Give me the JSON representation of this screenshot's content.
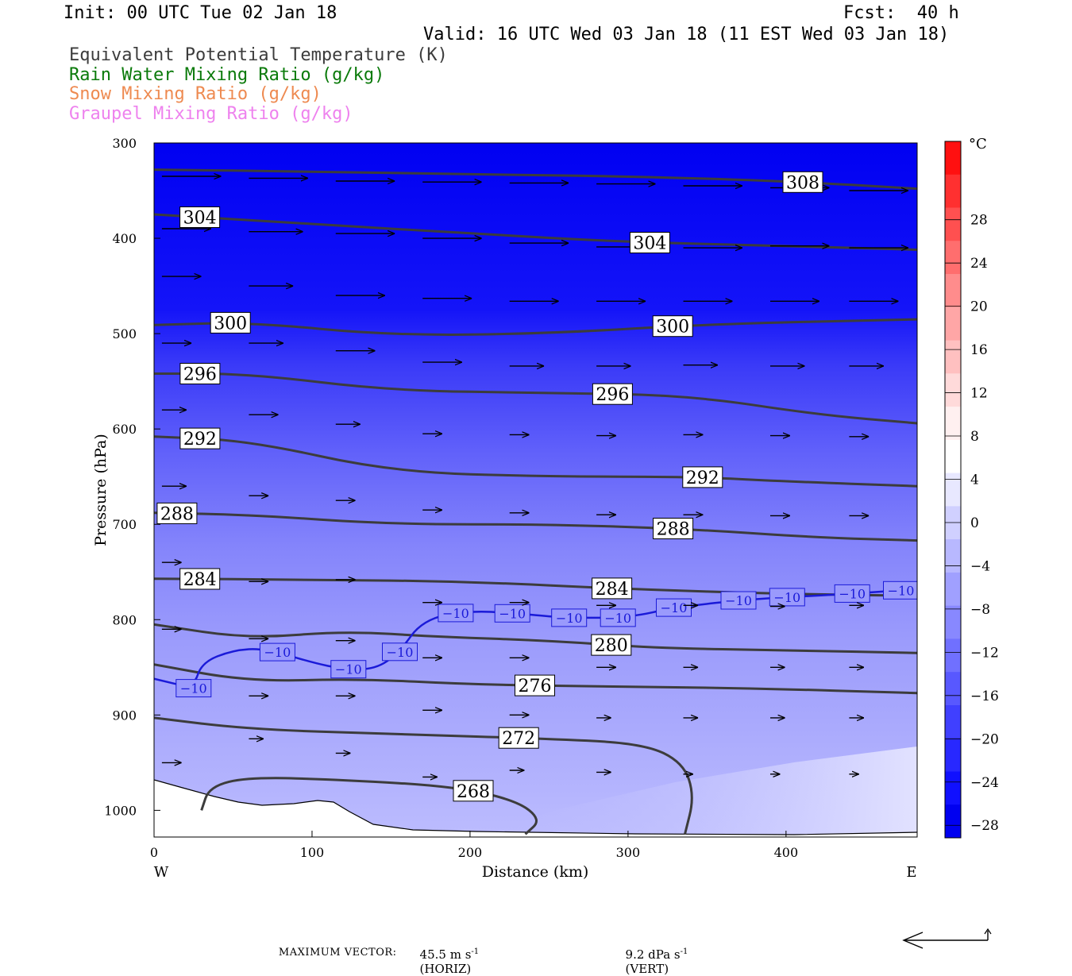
{
  "header": {
    "init": "Init: 00 UTC Tue 02 Jan 18",
    "fcst": "Fcst:  40 h",
    "valid": "Valid: 16 UTC Wed 03 Jan 18 (11 EST Wed 03 Jan 18)"
  },
  "legend": [
    {
      "label": "Equivalent Potential Temperature (K)",
      "color": "#3c3c3c"
    },
    {
      "label": "Rain Water Mixing Ratio (g/kg)",
      "color": "#0a7a0a"
    },
    {
      "label": "Snow Mixing Ratio (g/kg)",
      "color": "#ee8a50"
    },
    {
      "label": "Graupel Mixing Ratio (g/kg)",
      "color": "#ee82ee"
    }
  ],
  "footer": {
    "max_vector_label": "MAXIMUM VECTOR:",
    "horiz_value": "45.5 m s",
    "horiz_exp": "-1",
    "horiz_unit": "(HORIZ)",
    "vert_value": "9.2 dPa s",
    "vert_exp": "-1",
    "vert_unit": "(VERT)"
  },
  "chart_data": {
    "type": "cross-section",
    "xlabel": "Distance (km)",
    "ylabel": "Pressure (hPa)",
    "xlim": [
      0,
      483
    ],
    "ylim": [
      300,
      1028
    ],
    "y_scale": "linear-inverted",
    "x_ticks": [
      0,
      100,
      200,
      300,
      400
    ],
    "y_ticks": [
      300,
      400,
      500,
      600,
      700,
      800,
      900,
      1000
    ],
    "x_end_labels": {
      "left": "W",
      "right": "E"
    },
    "colorbar": {
      "unit": "°C",
      "tick_labels": [
        28,
        24,
        20,
        16,
        12,
        8,
        4,
        0,
        -4,
        -8,
        -12,
        -16,
        -20,
        -24,
        -28
      ],
      "colors": [
        "#ff1010",
        "#ff3030",
        "#ff5050",
        "#ff6e6e",
        "#ff8c8c",
        "#ffa6a6",
        "#ffc0c0",
        "#ffdada",
        "#fff0f0",
        "#ffffff",
        "#e8e8ff",
        "#d0d0ff",
        "#b8b8ff",
        "#a0a0ff",
        "#8888ff",
        "#7070ff",
        "#5858ff",
        "#4040ff",
        "#2828ff",
        "#1010ff",
        "#0000f0"
      ]
    },
    "theta_e_contours": [
      {
        "value": 308,
        "label": "308",
        "points": [
          [
            0,
            328
          ],
          [
            100,
            330
          ],
          [
            200,
            333
          ],
          [
            300,
            335
          ],
          [
            400,
            340
          ],
          [
            483,
            348
          ]
        ]
      },
      {
        "value": 304,
        "label": "304",
        "points": [
          [
            0,
            375
          ],
          [
            100,
            385
          ],
          [
            200,
            395
          ],
          [
            300,
            404
          ],
          [
            400,
            408
          ],
          [
            483,
            412
          ]
        ]
      },
      {
        "value": 300,
        "label": "300",
        "points": [
          [
            0,
            491
          ],
          [
            60,
            488
          ],
          [
            150,
            502
          ],
          [
            250,
            500
          ],
          [
            350,
            490
          ],
          [
            483,
            485
          ]
        ]
      },
      {
        "value": 296,
        "label": "296",
        "points": [
          [
            0,
            542
          ],
          [
            60,
            542
          ],
          [
            150,
            560
          ],
          [
            250,
            562
          ],
          [
            340,
            565
          ],
          [
            420,
            585
          ],
          [
            483,
            594
          ]
        ]
      },
      {
        "value": 292,
        "label": "292",
        "points": [
          [
            0,
            608
          ],
          [
            60,
            612
          ],
          [
            150,
            645
          ],
          [
            250,
            650
          ],
          [
            340,
            650
          ],
          [
            400,
            655
          ],
          [
            483,
            660
          ]
        ]
      },
      {
        "value": 288,
        "label": "288",
        "points": [
          [
            0,
            688
          ],
          [
            60,
            690
          ],
          [
            150,
            700
          ],
          [
            250,
            700
          ],
          [
            340,
            705
          ],
          [
            420,
            714
          ],
          [
            483,
            717
          ]
        ]
      },
      {
        "value": 284,
        "label": "284",
        "points": [
          [
            0,
            757
          ],
          [
            100,
            758
          ],
          [
            200,
            760
          ],
          [
            300,
            768
          ],
          [
            400,
            773
          ],
          [
            483,
            775
          ]
        ]
      },
      {
        "value": 280,
        "label": "280",
        "points": [
          [
            0,
            805
          ],
          [
            60,
            820
          ],
          [
            120,
            812
          ],
          [
            180,
            818
          ],
          [
            250,
            822
          ],
          [
            320,
            830
          ],
          [
            400,
            832
          ],
          [
            483,
            835
          ]
        ]
      },
      {
        "value": 276,
        "label": "276",
        "points": [
          [
            0,
            847
          ],
          [
            60,
            865
          ],
          [
            130,
            862
          ],
          [
            200,
            868
          ],
          [
            280,
            870
          ],
          [
            380,
            872
          ],
          [
            483,
            877
          ]
        ]
      },
      {
        "value": 272,
        "label": "272",
        "points": [
          [
            0,
            903
          ],
          [
            60,
            915
          ],
          [
            150,
            920
          ],
          [
            250,
            925
          ],
          [
            310,
            930
          ],
          [
            335,
            950
          ],
          [
            342,
            985
          ],
          [
            336,
            1025
          ]
        ]
      },
      {
        "value": 268,
        "label": "268",
        "points": [
          [
            30,
            1000
          ],
          [
            35,
            975
          ],
          [
            60,
            965
          ],
          [
            120,
            968
          ],
          [
            190,
            975
          ],
          [
            230,
            990
          ],
          [
            245,
            1010
          ],
          [
            235,
            1025
          ]
        ]
      }
    ],
    "temp_contour": {
      "value": -10,
      "label": "−10",
      "points": [
        [
          0,
          862
        ],
        [
          25,
          872
        ],
        [
          30,
          845
        ],
        [
          50,
          832
        ],
        [
          70,
          830
        ],
        [
          100,
          845
        ],
        [
          120,
          852
        ],
        [
          140,
          852
        ],
        [
          155,
          835
        ],
        [
          170,
          800
        ],
        [
          200,
          790
        ],
        [
          240,
          795
        ],
        [
          260,
          798
        ],
        [
          300,
          798
        ],
        [
          330,
          787
        ],
        [
          380,
          778
        ],
        [
          430,
          774
        ],
        [
          483,
          768
        ]
      ]
    },
    "wind_arrows": [
      [
        5,
        335,
        12,
        0
      ],
      [
        60,
        337,
        12,
        0
      ],
      [
        115,
        340,
        12,
        0
      ],
      [
        170,
        341,
        12,
        0
      ],
      [
        225,
        342,
        12,
        0
      ],
      [
        280,
        343,
        12,
        0
      ],
      [
        335,
        345,
        12,
        0
      ],
      [
        390,
        347,
        12,
        0
      ],
      [
        440,
        350,
        12,
        0
      ],
      [
        5,
        390,
        10,
        0
      ],
      [
        60,
        393,
        11,
        0
      ],
      [
        115,
        395,
        12,
        0
      ],
      [
        170,
        400,
        12,
        0
      ],
      [
        225,
        405,
        12,
        0
      ],
      [
        280,
        409,
        12,
        0
      ],
      [
        335,
        410,
        12,
        0
      ],
      [
        390,
        408,
        12,
        0
      ],
      [
        440,
        410,
        12,
        0
      ],
      [
        5,
        440,
        8,
        0
      ],
      [
        60,
        450,
        9,
        0
      ],
      [
        115,
        460,
        10,
        0
      ],
      [
        170,
        463,
        10,
        0
      ],
      [
        225,
        466,
        10,
        0
      ],
      [
        280,
        466,
        10,
        0
      ],
      [
        335,
        466,
        10,
        0
      ],
      [
        390,
        466,
        10,
        0
      ],
      [
        440,
        466,
        10,
        0
      ],
      [
        5,
        510,
        6,
        0
      ],
      [
        60,
        510,
        7,
        0
      ],
      [
        115,
        518,
        8,
        0
      ],
      [
        170,
        530,
        8,
        0
      ],
      [
        225,
        534,
        7,
        0
      ],
      [
        280,
        534,
        7,
        0
      ],
      [
        335,
        533,
        7,
        0
      ],
      [
        390,
        534,
        7,
        0
      ],
      [
        440,
        534,
        7,
        0
      ],
      [
        5,
        580,
        5,
        0
      ],
      [
        60,
        585,
        6,
        0
      ],
      [
        115,
        595,
        5,
        0
      ],
      [
        170,
        605,
        4,
        0
      ],
      [
        225,
        606,
        4,
        0
      ],
      [
        280,
        607,
        4,
        0
      ],
      [
        335,
        606,
        4,
        0
      ],
      [
        390,
        607,
        4,
        0
      ],
      [
        440,
        608,
        4,
        0
      ],
      [
        5,
        660,
        5,
        0
      ],
      [
        60,
        670,
        4,
        0
      ],
      [
        115,
        675,
        4,
        0
      ],
      [
        170,
        685,
        4,
        0
      ],
      [
        225,
        688,
        4,
        0
      ],
      [
        280,
        690,
        4,
        0
      ],
      [
        335,
        690,
        4,
        0
      ],
      [
        390,
        691,
        4,
        0
      ],
      [
        440,
        691,
        4,
        0
      ],
      [
        5,
        740,
        4,
        0
      ],
      [
        60,
        760,
        4,
        0
      ],
      [
        115,
        758,
        4,
        0
      ],
      [
        170,
        782,
        4,
        0
      ],
      [
        225,
        782,
        4,
        0
      ],
      [
        280,
        785,
        4,
        0
      ],
      [
        335,
        785,
        3,
        0
      ],
      [
        390,
        786,
        3,
        0
      ],
      [
        440,
        785,
        3,
        0
      ],
      [
        5,
        810,
        4,
        0
      ],
      [
        60,
        820,
        4,
        0
      ],
      [
        115,
        822,
        4,
        0
      ],
      [
        170,
        840,
        4,
        0
      ],
      [
        225,
        840,
        4,
        0
      ],
      [
        280,
        850,
        4,
        0
      ],
      [
        335,
        850,
        3,
        0
      ],
      [
        390,
        850,
        3,
        0
      ],
      [
        440,
        850,
        3,
        0
      ],
      [
        60,
        880,
        4,
        0
      ],
      [
        115,
        880,
        4,
        0
      ],
      [
        170,
        895,
        4,
        0
      ],
      [
        225,
        900,
        4,
        0
      ],
      [
        280,
        903,
        3,
        0
      ],
      [
        335,
        903,
        3,
        0
      ],
      [
        390,
        903,
        3,
        0
      ],
      [
        440,
        903,
        3,
        0
      ],
      [
        5,
        950,
        4,
        0
      ],
      [
        60,
        925,
        3,
        0
      ],
      [
        115,
        940,
        3,
        0
      ],
      [
        170,
        965,
        3,
        0
      ],
      [
        225,
        958,
        3,
        0
      ],
      [
        280,
        960,
        3,
        0
      ],
      [
        335,
        962,
        2,
        0
      ],
      [
        390,
        962,
        2,
        0
      ],
      [
        440,
        962,
        2,
        0
      ]
    ]
  }
}
